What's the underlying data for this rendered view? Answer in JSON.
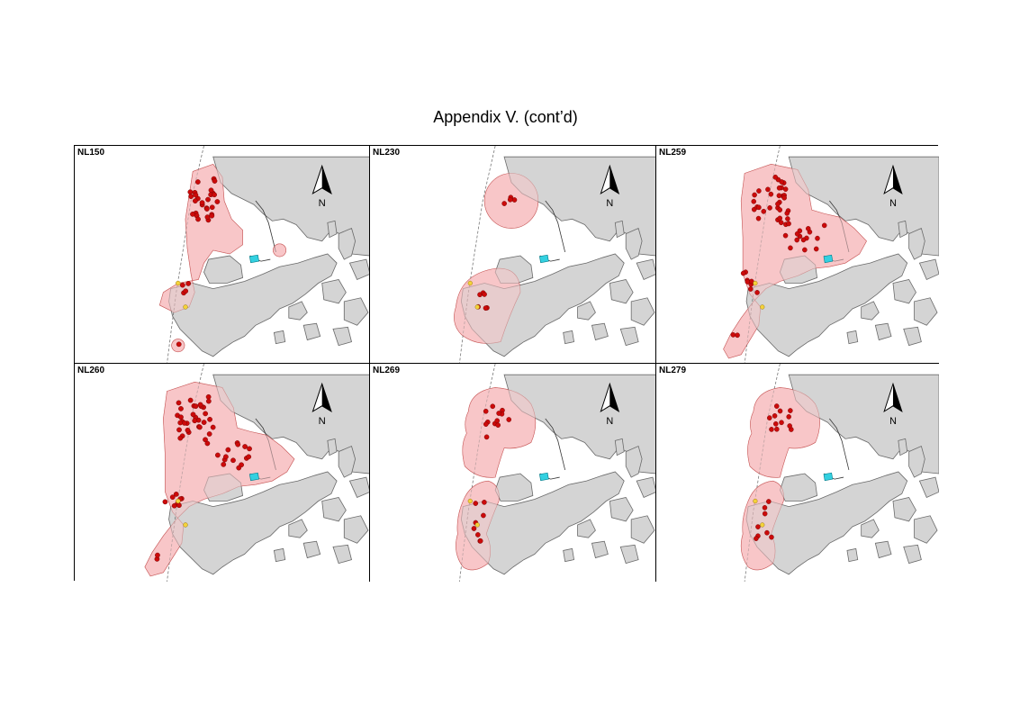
{
  "title": "Appendix V.  (cont’d)",
  "colors": {
    "land": "#d4d4d4",
    "range": "#f8c6c8",
    "range_edge": "#c85a5a",
    "sighting": "#cc0a0a",
    "sighting_alt": "#f4d23a",
    "facility": "#33d0e0"
  },
  "north_arrow": {
    "label": "N",
    "icon": "north-arrow-icon"
  },
  "panels": [
    {
      "id": "NL150",
      "range_shape": "nw-strip-south"
    },
    {
      "id": "NL230",
      "range_shape": "two-circles"
    },
    {
      "id": "NL259",
      "range_shape": "broad-west-east"
    },
    {
      "id": "NL260",
      "range_shape": "broad-west-east"
    },
    {
      "id": "NL269",
      "range_shape": "north-and-south-lobes"
    },
    {
      "id": "NL279",
      "range_shape": "north-and-south-lobes"
    }
  ]
}
